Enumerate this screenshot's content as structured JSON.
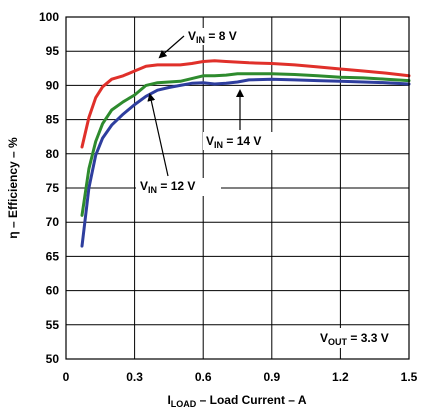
{
  "chart_data": {
    "type": "line",
    "xlabel": {
      "main": "I",
      "sub": "LOAD",
      "rest": " – Load Current – A"
    },
    "ylabel": "η – Efficiency – %",
    "xlim": [
      0,
      1.5
    ],
    "ylim": [
      50,
      100
    ],
    "xticks": [
      "0",
      "0.3",
      "0.6",
      "0.9",
      "1.2",
      "1.5"
    ],
    "yticks": [
      "50",
      "55",
      "60",
      "65",
      "70",
      "75",
      "80",
      "85",
      "90",
      "95",
      "100"
    ],
    "grid": true,
    "series": [
      {
        "name": "V_IN = 8 V",
        "color": "#e0302a",
        "x": [
          0.07,
          0.1,
          0.13,
          0.16,
          0.2,
          0.25,
          0.3,
          0.35,
          0.4,
          0.45,
          0.5,
          0.55,
          0.6,
          0.65,
          0.7,
          0.75,
          0.8,
          0.9,
          1.0,
          1.1,
          1.2,
          1.3,
          1.4,
          1.5
        ],
        "y": [
          81.0,
          85.3,
          88.2,
          89.8,
          90.9,
          91.4,
          92.1,
          92.8,
          93.0,
          93.0,
          93.0,
          93.2,
          93.5,
          93.6,
          93.5,
          93.4,
          93.3,
          93.2,
          93.0,
          92.7,
          92.4,
          92.1,
          91.8,
          91.4
        ]
      },
      {
        "name": "V_IN = 12 V",
        "color": "#2e8b2e",
        "x": [
          0.07,
          0.1,
          0.13,
          0.16,
          0.2,
          0.25,
          0.3,
          0.35,
          0.4,
          0.45,
          0.5,
          0.55,
          0.6,
          0.65,
          0.7,
          0.75,
          0.8,
          0.9,
          1.0,
          1.1,
          1.2,
          1.3,
          1.4,
          1.5
        ],
        "y": [
          71.0,
          77.8,
          81.8,
          84.4,
          86.4,
          87.6,
          88.6,
          90.0,
          90.4,
          90.5,
          90.6,
          91.0,
          91.4,
          91.4,
          91.5,
          91.7,
          91.7,
          91.7,
          91.6,
          91.4,
          91.2,
          91.1,
          90.9,
          90.7
        ]
      },
      {
        "name": "V_IN = 14 V",
        "color": "#2e3e9e",
        "x": [
          0.07,
          0.1,
          0.13,
          0.16,
          0.2,
          0.25,
          0.3,
          0.35,
          0.4,
          0.45,
          0.5,
          0.55,
          0.6,
          0.65,
          0.7,
          0.75,
          0.8,
          0.9,
          1.0,
          1.1,
          1.2,
          1.3,
          1.4,
          1.5
        ],
        "y": [
          66.5,
          75.0,
          79.8,
          82.3,
          84.2,
          85.8,
          87.2,
          88.4,
          89.3,
          89.7,
          90.0,
          90.3,
          90.4,
          90.2,
          90.3,
          90.5,
          90.8,
          90.9,
          90.8,
          90.7,
          90.6,
          90.5,
          90.4,
          90.2
        ]
      }
    ],
    "annotations": [
      {
        "id": "vin8",
        "main": "V",
        "sub": "IN",
        "rest": " = 8 V"
      },
      {
        "id": "vin12",
        "main": "V",
        "sub": "IN",
        "rest": " = 12 V"
      },
      {
        "id": "vin14",
        "main": "V",
        "sub": "IN",
        "rest": " = 14 V"
      },
      {
        "id": "vout",
        "main": "V",
        "sub": "OUT",
        "rest": " = 3.3 V"
      }
    ]
  }
}
